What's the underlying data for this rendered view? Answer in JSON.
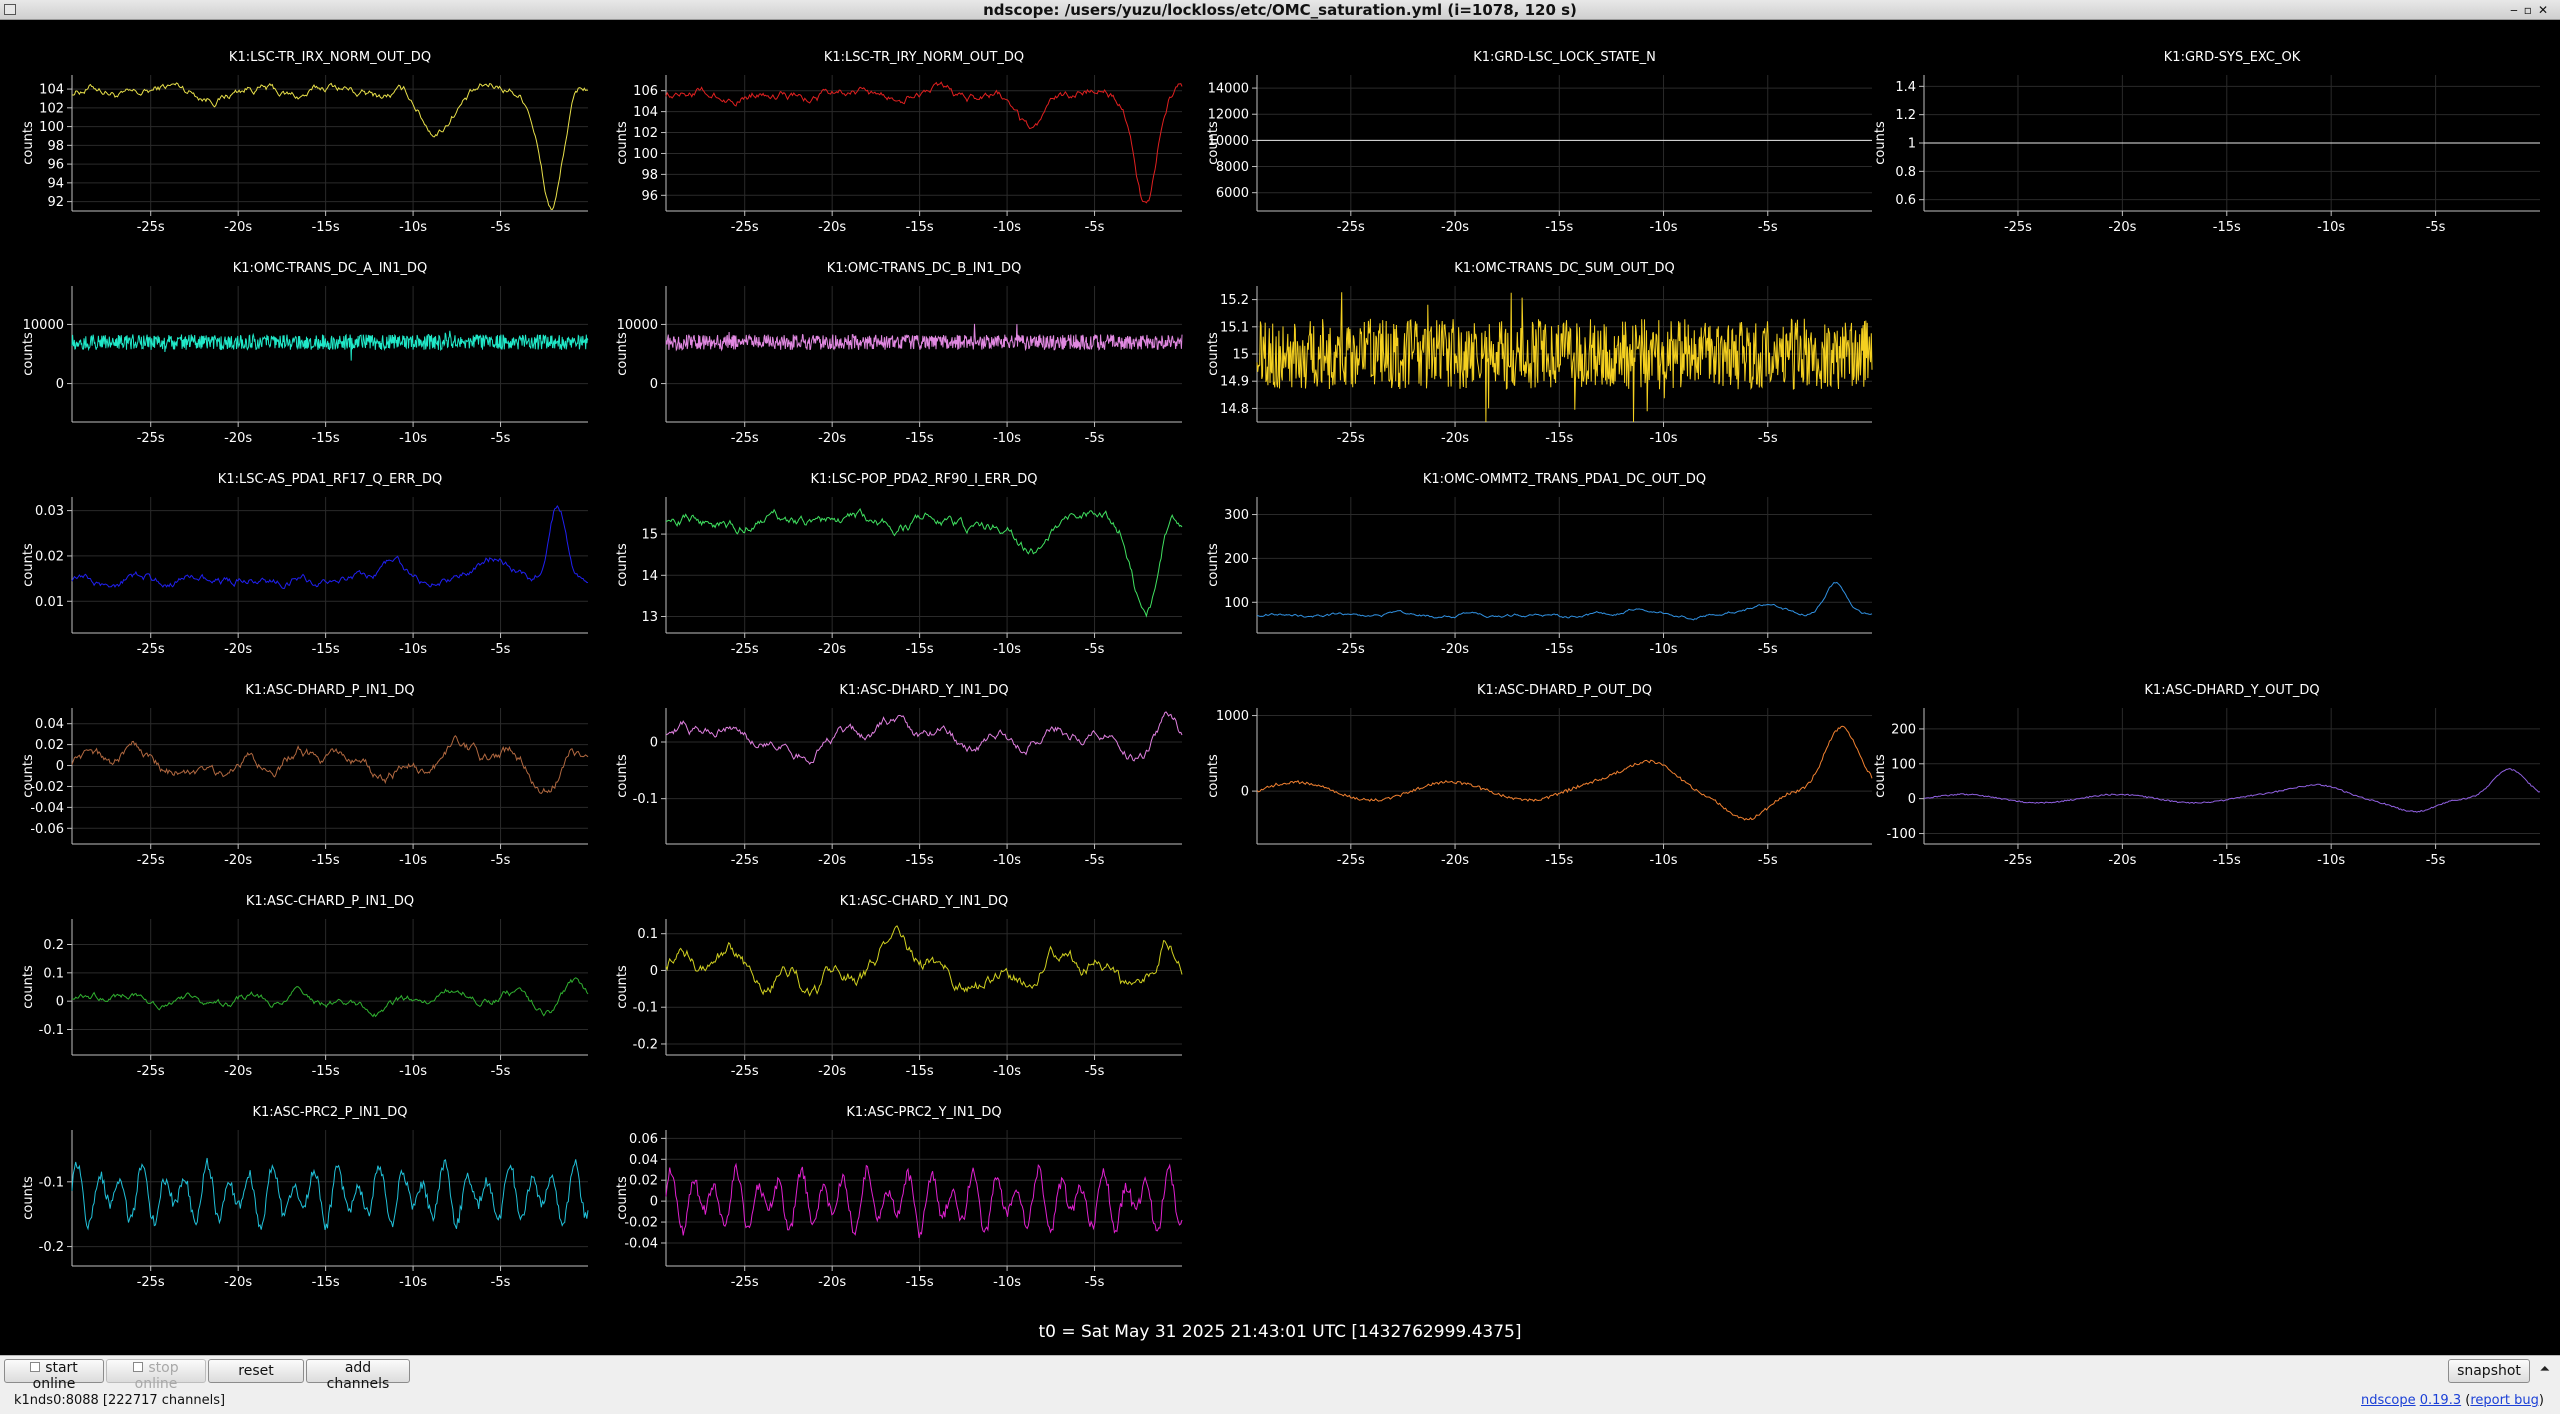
{
  "window": {
    "title": "ndscope: /users/yuzu/lockloss/etc/OMC_saturation.yml (i=1078, 120 s)"
  },
  "time_ticks": [
    "-25s",
    "-20s",
    "-15s",
    "-10s",
    "-5s"
  ],
  "y_axis_label": "counts",
  "t0_label": "t0 = Sat May 31 2025 21:43:01 UTC [1432762999.4375]",
  "colors": {
    "background": "#000000",
    "axis": "#bfbfbf",
    "grid": "#2a2a2a"
  },
  "chart_data": [
    {
      "type": "line",
      "title": "K1:LSC-TR_IRX_NORM_OUT_DQ",
      "color": "#e8e04a",
      "yticks": [
        92,
        94,
        96,
        98,
        100,
        102,
        104
      ],
      "ylim": [
        91,
        105.5
      ],
      "shape": "dip",
      "base": 103.7,
      "amp": 0.9,
      "dip": 12,
      "x_range": [
        -29.5,
        0
      ]
    },
    {
      "type": "line",
      "title": "K1:LSC-TR_IRY_NORM_OUT_DQ",
      "color": "#e02020",
      "yticks": [
        96,
        98,
        100,
        102,
        104,
        106
      ],
      "ylim": [
        94.5,
        107.5
      ],
      "shape": "dip",
      "base": 105.7,
      "amp": 0.8,
      "dip": 10.5,
      "x_range": [
        -29.5,
        0
      ]
    },
    {
      "type": "line",
      "title": "K1:GRD-LSC_LOCK_STATE_N",
      "color": "#e8e8e8",
      "yticks": [
        6000,
        8000,
        10000,
        12000,
        14000
      ],
      "ylim": [
        4600,
        15000
      ],
      "shape": "flat",
      "base": 10000,
      "x_range": [
        -29.5,
        0
      ]
    },
    {
      "type": "line",
      "title": "K1:GRD-SYS_EXC_OK",
      "color": "#e8e8e8",
      "yticks": [
        0.6,
        0.8,
        1,
        1.2,
        1.4
      ],
      "ylim": [
        0.52,
        1.48
      ],
      "shape": "flat",
      "base": 1,
      "x_range": [
        -29.5,
        0
      ]
    },
    {
      "type": "line",
      "title": "K1:OMC-TRANS_DC_A_IN1_DQ",
      "color": "#20e8c8",
      "yticks": [
        0,
        10000
      ],
      "ylim": [
        -6500,
        16500
      ],
      "shape": "noise",
      "base": 7000,
      "amp": 1300,
      "x_range": [
        -29.5,
        0
      ]
    },
    {
      "type": "line",
      "title": "K1:OMC-TRANS_DC_B_IN1_DQ",
      "color": "#e088e0",
      "yticks": [
        0,
        10000
      ],
      "ylim": [
        -6500,
        16500
      ],
      "shape": "noise",
      "base": 7000,
      "amp": 1300,
      "x_range": [
        -29.5,
        0
      ]
    },
    {
      "type": "line",
      "title": "K1:OMC-TRANS_DC_SUM_OUT_DQ",
      "color": "#f4d020",
      "yticks": [
        14.8,
        14.9,
        15,
        15.1,
        15.2
      ],
      "ylim": [
        14.75,
        15.25
      ],
      "shape": "noise",
      "base": 15,
      "amp": 0.13,
      "x_range": [
        -29.5,
        0
      ]
    },
    {
      "type": "line",
      "title": "K1:LSC-AS_PDA1_RF17_Q_ERR_DQ",
      "color": "#2020f0",
      "yticks": [
        0.01,
        0.02,
        0.03
      ],
      "ylim": [
        0.003,
        0.033
      ],
      "shape": "bump",
      "base": 0.0145,
      "amp": 0.0012,
      "x_range": [
        -29.5,
        0
      ]
    },
    {
      "type": "line",
      "title": "K1:LSC-POP_PDA2_RF90_I_ERR_DQ",
      "color": "#40e060",
      "yticks": [
        13,
        14,
        15
      ],
      "ylim": [
        12.6,
        15.9
      ],
      "shape": "dip",
      "base": 15.3,
      "amp": 0.25,
      "dip": 2.2,
      "x_range": [
        -29.5,
        0
      ]
    },
    {
      "type": "line",
      "title": "K1:OMC-OMMT2_TRANS_PDA1_DC_OUT_DQ",
      "color": "#3090e0",
      "yticks": [
        100,
        200,
        300
      ],
      "ylim": [
        30,
        340
      ],
      "shape": "bump",
      "base": 70,
      "amp": 5,
      "x_range": [
        -29.5,
        0
      ]
    },
    {
      "type": "line",
      "title": "K1:ASC-DHARD_P_IN1_DQ",
      "color": "#b06840",
      "yticks": [
        -0.06,
        -0.04,
        -0.02,
        0,
        0.02,
        0.04
      ],
      "ylim": [
        -0.075,
        0.055
      ],
      "shape": "wave",
      "base": 0,
      "amp": 0.012,
      "x_range": [
        -29.5,
        0
      ]
    },
    {
      "type": "line",
      "title": "K1:ASC-DHARD_Y_IN1_DQ",
      "color": "#e080e0",
      "yticks": [
        -0.1,
        0
      ],
      "ylim": [
        -0.18,
        0.06
      ],
      "shape": "wave",
      "base": 0.01,
      "amp": 0.02,
      "x_range": [
        -29.5,
        0
      ]
    },
    {
      "type": "line",
      "title": "K1:ASC-DHARD_P_OUT_DQ",
      "color": "#f08030",
      "yticks": [
        0,
        1000
      ],
      "ylim": [
        -700,
        1100
      ],
      "shape": "smooth",
      "base": 0,
      "amp": 400,
      "x_range": [
        -29.5,
        0
      ]
    },
    {
      "type": "line",
      "title": "K1:ASC-DHARD_Y_OUT_DQ",
      "color": "#9060e0",
      "yticks": [
        -100,
        0,
        100,
        200
      ],
      "ylim": [
        -130,
        260
      ],
      "shape": "smooth",
      "base": 0,
      "amp": 40,
      "x_range": [
        -29.5,
        0
      ]
    },
    {
      "type": "line",
      "title": "K1:ASC-CHARD_P_IN1_DQ",
      "color": "#30b030",
      "yticks": [
        -0.1,
        0,
        0.1,
        0.2
      ],
      "ylim": [
        -0.19,
        0.29
      ],
      "shape": "wave",
      "base": 0,
      "amp": 0.03,
      "x_range": [
        -29.5,
        0
      ]
    },
    {
      "type": "line",
      "title": "K1:ASC-CHARD_Y_IN1_DQ",
      "color": "#d0d020",
      "yticks": [
        -0.2,
        -0.1,
        0,
        0.1
      ],
      "ylim": [
        -0.23,
        0.14
      ],
      "shape": "wave",
      "base": 0,
      "amp": 0.045,
      "x_range": [
        -29.5,
        0
      ]
    },
    {
      "type": "line",
      "title": "K1:ASC-PRC2_P_IN1_DQ",
      "color": "#20c0d8",
      "yticks": [
        -0.2,
        -0.1
      ],
      "ylim": [
        -0.23,
        -0.02
      ],
      "shape": "osc",
      "base": -0.12,
      "amp": 0.045,
      "x_range": [
        -29.5,
        0
      ]
    },
    {
      "type": "line",
      "title": "K1:ASC-PRC2_Y_IN1_DQ",
      "color": "#e020d0",
      "yticks": [
        -0.04,
        -0.02,
        0,
        0.02,
        0.04,
        0.06
      ],
      "ylim": [
        -0.062,
        0.068
      ],
      "shape": "osc",
      "base": 0,
      "amp": 0.028,
      "x_range": [
        -29.5,
        0
      ]
    }
  ],
  "toolbar": {
    "start_online": "start online",
    "stop_online": "stop online",
    "reset": "reset",
    "add_channels": "add channels",
    "snapshot": "snapshot",
    "collapse_glyph": "⏶"
  },
  "status": {
    "server": "k1nds0:8088 [222717 channels]",
    "app_name": "ndscope",
    "version": "0.19.3",
    "report_bug": "report bug",
    "paren_open": "(",
    "paren_close": ")"
  }
}
